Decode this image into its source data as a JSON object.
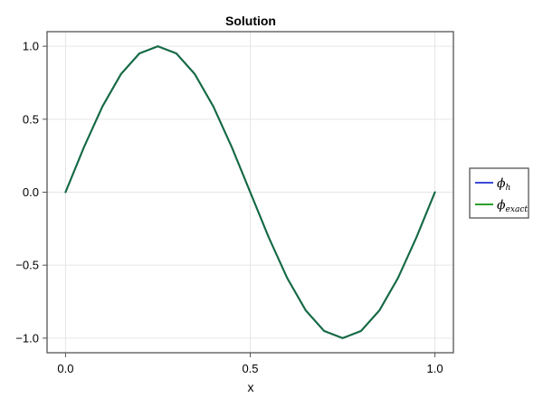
{
  "chart_data": {
    "type": "line",
    "title": "Solution",
    "xlabel": "x",
    "ylabel": "",
    "xlim": [
      -0.05,
      1.05
    ],
    "ylim": [
      -1.1,
      1.1
    ],
    "xticks": [
      0.0,
      0.5,
      1.0
    ],
    "xtick_labels": [
      "0.0",
      "0.5",
      "1.0"
    ],
    "yticks": [
      1.0,
      0.5,
      0.0,
      -0.5,
      -1.0
    ],
    "ytick_labels": [
      "1.0",
      "0.5",
      "0.0",
      "−0.5",
      "−1.0"
    ],
    "grid": true,
    "legend_position": "right",
    "x": [
      0.0,
      0.05,
      0.1,
      0.15,
      0.2,
      0.25,
      0.3,
      0.35,
      0.4,
      0.45,
      0.5,
      0.55,
      0.6,
      0.65,
      0.7,
      0.75,
      0.8,
      0.85,
      0.9,
      0.95,
      1.0
    ],
    "series": [
      {
        "name": "ϕ_h",
        "legend_main": "ϕ",
        "legend_sub": "h",
        "color": "#3b4bd6",
        "values": [
          0.0,
          0.309,
          0.588,
          0.809,
          0.951,
          1.0,
          0.951,
          0.809,
          0.588,
          0.309,
          0.0,
          -0.309,
          -0.588,
          -0.809,
          -0.951,
          -1.0,
          -0.951,
          -0.809,
          -0.588,
          -0.309,
          0.0
        ]
      },
      {
        "name": "ϕ_exact",
        "legend_main": "ϕ",
        "legend_sub": "exact",
        "color": "#2ca02c",
        "values": [
          0.0,
          0.309,
          0.588,
          0.809,
          0.951,
          1.0,
          0.951,
          0.809,
          0.588,
          0.309,
          0.0,
          -0.309,
          -0.588,
          -0.809,
          -0.951,
          -1.0,
          -0.951,
          -0.809,
          -0.588,
          -0.309,
          0.0
        ]
      }
    ],
    "overlap_line_color": "#146c3c",
    "frame_color": "#555555",
    "grid_color": "#e6e6e6"
  }
}
